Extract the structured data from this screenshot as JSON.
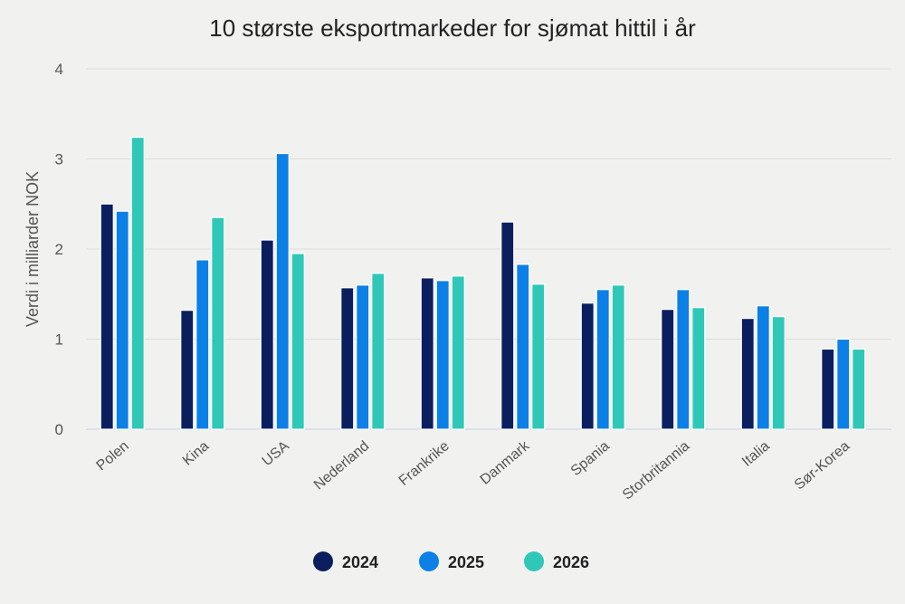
{
  "chart_data": {
    "type": "bar",
    "title": "10 største eksportmarkeder for sjømat hittil i år",
    "xlabel": "",
    "ylabel": "Verdi i milliarder NOK",
    "ylim": [
      0,
      4
    ],
    "yticks": [
      "0",
      "1",
      "2",
      "3",
      "4"
    ],
    "grid": true,
    "legend_position": "bottom-center",
    "categories": [
      "Polen",
      "Kina",
      "USA",
      "Nederland",
      "Frankrike",
      "Danmark",
      "Spania",
      "Storbritannia",
      "Italia",
      "Sør-Korea"
    ],
    "series": [
      {
        "name": "2024",
        "color": "#0b1f5e",
        "values": [
          2.5,
          1.32,
          2.1,
          1.57,
          1.68,
          2.3,
          1.4,
          1.33,
          1.23,
          0.89
        ]
      },
      {
        "name": "2025",
        "color": "#0b80e6",
        "values": [
          2.42,
          1.88,
          3.06,
          1.6,
          1.65,
          1.83,
          1.55,
          1.55,
          1.37,
          1.0
        ]
      },
      {
        "name": "2026",
        "color": "#2fc8b8",
        "values": [
          3.24,
          2.35,
          1.95,
          1.73,
          1.7,
          1.61,
          1.6,
          1.35,
          1.25,
          0.89
        ]
      }
    ]
  }
}
